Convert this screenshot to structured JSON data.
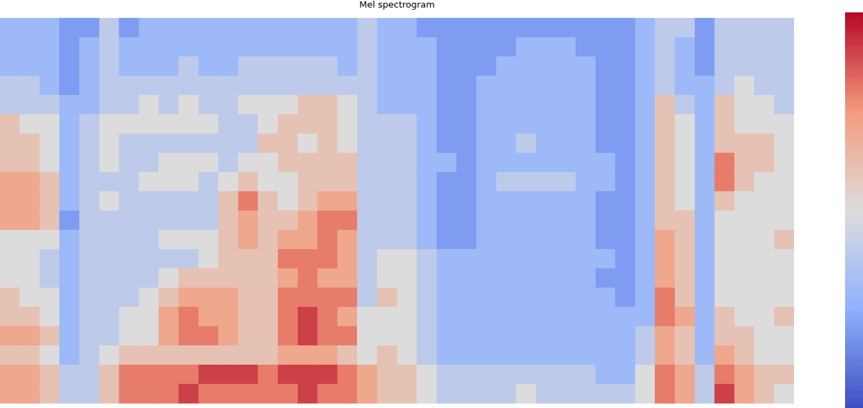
{
  "chart_data": {
    "type": "heatmap",
    "title": "Mel spectrogram",
    "tick_labels": false,
    "colorbar": {
      "range": [
        0,
        10
      ]
    },
    "cells": [
      [
        3,
        3,
        3,
        4,
        4,
        6,
        6,
        6,
        7,
        7,
        7,
        5,
        5,
        5,
        6,
        6,
        7,
        6,
        7,
        7
      ],
      [
        3,
        3,
        3,
        4,
        4,
        5,
        6,
        6,
        7,
        7,
        7,
        5,
        5,
        5,
        5,
        6,
        7,
        6,
        7,
        7
      ],
      [
        3,
        3,
        3,
        3,
        4,
        5,
        5,
        5,
        6,
        6,
        6,
        5,
        4,
        4,
        5,
        5,
        6,
        5,
        6,
        6
      ],
      [
        2,
        2,
        2,
        2,
        3,
        3,
        3,
        3,
        3,
        3,
        2,
        3,
        3,
        3,
        3,
        3,
        3,
        3,
        4,
        4
      ],
      [
        2,
        3,
        3,
        3,
        3,
        4,
        4,
        4,
        4,
        4,
        4,
        4,
        4,
        4,
        4,
        4,
        4,
        4,
        4,
        4
      ],
      [
        4,
        4,
        4,
        4,
        4,
        5,
        5,
        5,
        4,
        5,
        4,
        4,
        4,
        4,
        4,
        4,
        4,
        5,
        6,
        6
      ],
      [
        2,
        3,
        3,
        4,
        4,
        5,
        4,
        4,
        4,
        4,
        4,
        4,
        4,
        4,
        4,
        5,
        5,
        6,
        8,
        8
      ],
      [
        3,
        3,
        3,
        4,
        5,
        5,
        4,
        4,
        5,
        4,
        4,
        4,
        4,
        4,
        5,
        5,
        5,
        6,
        8,
        8
      ],
      [
        3,
        3,
        3,
        4,
        4,
        5,
        4,
        5,
        5,
        4,
        4,
        5,
        4,
        5,
        6,
        7,
        7,
        6,
        8,
        8
      ],
      [
        3,
        3,
        4,
        4,
        5,
        5,
        4,
        5,
        5,
        4,
        4,
        5,
        4,
        6,
        7,
        8,
        8,
        6,
        8,
        9
      ],
      [
        3,
        3,
        3,
        4,
        4,
        5,
        4,
        5,
        4,
        4,
        4,
        5,
        5,
        6,
        7,
        7,
        8,
        6,
        9,
        8
      ],
      [
        3,
        3,
        3,
        4,
        4,
        4,
        4,
        4,
        5,
        6,
        6,
        6,
        6,
        6,
        7,
        7,
        7,
        6,
        9,
        8
      ],
      [
        3,
        3,
        4,
        4,
        5,
        4,
        4,
        5,
        6,
        8,
        7,
        7,
        6,
        6,
        6,
        6,
        6,
        6,
        9,
        8
      ],
      [
        3,
        3,
        4,
        4,
        5,
        5,
        6,
        5,
        5,
        6,
        6,
        6,
        6,
        6,
        6,
        6,
        6,
        6,
        8,
        8
      ],
      [
        3,
        3,
        4,
        4,
        5,
        6,
        6,
        6,
        5,
        5,
        6,
        7,
        8,
        7,
        8,
        8,
        8,
        7,
        9,
        8
      ],
      [
        3,
        3,
        4,
        4,
        6,
        6,
        5,
        6,
        6,
        6,
        7,
        7,
        8,
        8,
        8,
        9,
        9,
        7,
        9,
        9
      ],
      [
        3,
        3,
        4,
        4,
        6,
        6,
        6,
        6,
        6,
        7,
        8,
        8,
        8,
        7,
        8,
        8,
        8,
        7,
        9,
        8
      ],
      [
        3,
        3,
        3,
        4,
        5,
        5,
        5,
        6,
        6,
        7,
        8,
        7,
        7,
        7,
        8,
        7,
        8,
        6,
        8,
        8
      ],
      [
        4,
        4,
        4,
        4,
        4,
        4,
        4,
        4,
        4,
        4,
        4,
        4,
        4,
        4,
        4,
        5,
        5,
        5,
        7,
        7
      ],
      [
        3,
        3,
        3,
        3,
        3,
        4,
        4,
        4,
        4,
        4,
        4,
        4,
        5,
        5,
        6,
        5,
        5,
        6,
        6,
        6
      ],
      [
        3,
        3,
        3,
        3,
        3,
        4,
        4,
        4,
        4,
        4,
        4,
        4,
        5,
        5,
        5,
        5,
        5,
        5,
        6,
        6
      ],
      [
        2,
        3,
        3,
        3,
        3,
        3,
        3,
        3,
        3,
        3,
        3,
        3,
        4,
        4,
        4,
        4,
        4,
        4,
        5,
        5
      ],
      [
        2,
        2,
        2,
        2,
        2,
        2,
        2,
        3,
        2,
        2,
        2,
        2,
        3,
        3,
        3,
        3,
        3,
        3,
        4,
        4
      ],
      [
        2,
        2,
        2,
        2,
        2,
        2,
        2,
        2,
        2,
        2,
        2,
        2,
        3,
        3,
        3,
        3,
        3,
        3,
        4,
        4
      ],
      [
        2,
        2,
        2,
        3,
        3,
        3,
        3,
        3,
        3,
        3,
        3,
        3,
        3,
        3,
        3,
        3,
        3,
        3,
        4,
        4
      ],
      [
        2,
        2,
        3,
        3,
        3,
        3,
        3,
        3,
        4,
        3,
        3,
        3,
        3,
        3,
        3,
        3,
        3,
        3,
        4,
        4
      ],
      [
        2,
        3,
        3,
        3,
        3,
        3,
        4,
        3,
        4,
        3,
        3,
        3,
        3,
        3,
        3,
        3,
        3,
        3,
        4,
        5
      ],
      [
        2,
        3,
        3,
        3,
        3,
        3,
        3,
        3,
        4,
        3,
        3,
        3,
        3,
        3,
        3,
        3,
        3,
        3,
        4,
        4
      ],
      [
        2,
        3,
        3,
        3,
        3,
        3,
        3,
        3,
        4,
        3,
        3,
        3,
        3,
        3,
        3,
        3,
        3,
        3,
        4,
        4
      ],
      [
        2,
        2,
        3,
        3,
        3,
        3,
        3,
        3,
        3,
        3,
        3,
        3,
        3,
        3,
        3,
        3,
        3,
        3,
        4,
        4
      ],
      [
        2,
        2,
        2,
        2,
        2,
        2,
        2,
        3,
        3,
        2,
        2,
        2,
        3,
        2,
        3,
        3,
        3,
        3,
        3,
        4
      ],
      [
        2,
        2,
        2,
        2,
        2,
        2,
        2,
        2,
        2,
        2,
        2,
        2,
        2,
        2,
        2,
        3,
        3,
        3,
        3,
        4
      ],
      [
        3,
        3,
        3,
        3,
        3,
        3,
        3,
        3,
        3,
        3,
        3,
        3,
        3,
        3,
        3,
        3,
        4,
        4,
        5,
        5
      ],
      [
        4,
        4,
        4,
        4,
        6,
        6,
        6,
        6,
        6,
        6,
        6,
        7,
        7,
        7,
        8,
        8,
        7,
        7,
        8,
        8
      ],
      [
        4,
        3,
        3,
        3,
        4,
        5,
        5,
        5,
        5,
        5,
        6,
        6,
        6,
        6,
        6,
        7,
        6,
        6,
        7,
        7
      ],
      [
        2,
        2,
        2,
        3,
        3,
        3,
        3,
        3,
        3,
        3,
        3,
        3,
        3,
        3,
        3,
        3,
        3,
        3,
        4,
        4
      ],
      [
        4,
        4,
        4,
        4,
        6,
        6,
        6,
        8,
        8,
        6,
        5,
        5,
        5,
        5,
        5,
        6,
        6,
        7,
        8,
        9
      ],
      [
        4,
        4,
        4,
        5,
        5,
        5,
        6,
        6,
        6,
        5,
        5,
        5,
        5,
        5,
        5,
        5,
        6,
        6,
        7,
        7
      ],
      [
        4,
        4,
        4,
        4,
        5,
        5,
        6,
        6,
        5,
        5,
        5,
        5,
        5,
        5,
        5,
        5,
        5,
        5,
        6,
        6
      ],
      [
        4,
        4,
        4,
        4,
        4,
        5,
        5,
        5,
        5,
        5,
        5,
        6,
        5,
        5,
        5,
        6,
        5,
        5,
        6,
        5
      ]
    ]
  }
}
